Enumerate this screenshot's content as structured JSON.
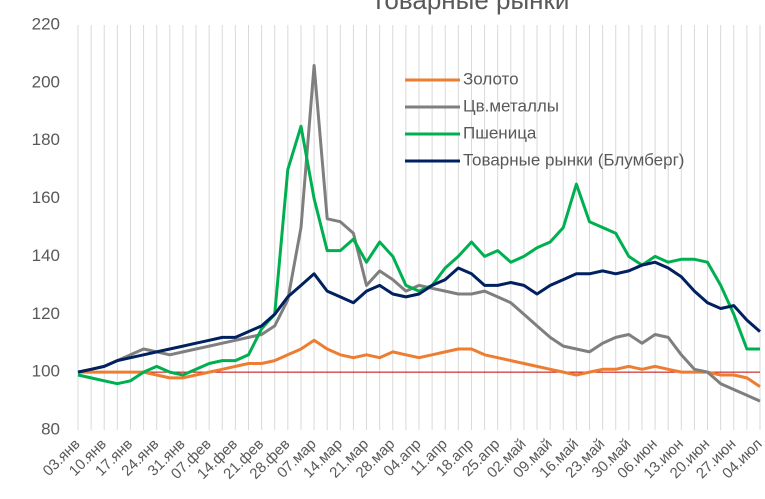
{
  "chart_data": {
    "type": "line",
    "title": "Товарные рынки",
    "categories": [
      "03.янв",
      null,
      "10.янв",
      null,
      "17.янв",
      null,
      "24.янв",
      null,
      "31.янв",
      null,
      "07.фев",
      null,
      "14.фев",
      null,
      "21.фев",
      null,
      "28.фев",
      null,
      "07.мар",
      null,
      "14.мар",
      null,
      "21.мар",
      null,
      "28.мар",
      null,
      "04.апр",
      null,
      "11.апр",
      null,
      "18.апр",
      null,
      "25.апр",
      null,
      "02.май",
      null,
      "09.май",
      null,
      "16.май",
      null,
      "23.май",
      null,
      "30.май",
      null,
      "06.июн",
      null,
      "13.июн",
      null,
      "20.июн",
      null,
      "27.июн",
      null,
      "04.июл"
    ],
    "series": [
      {
        "name": "Золото",
        "color": "#ed7d31",
        "values": [
          100,
          100,
          100,
          100,
          100,
          100,
          99,
          98,
          98,
          99,
          100,
          101,
          102,
          103,
          103,
          104,
          106,
          108,
          111,
          108,
          106,
          105,
          106,
          105,
          107,
          106,
          105,
          106,
          107,
          108,
          108,
          106,
          105,
          104,
          103,
          102,
          101,
          100,
          99,
          100,
          101,
          101,
          102,
          101,
          102,
          101,
          100,
          100,
          100,
          99,
          99,
          98,
          95
        ]
      },
      {
        "name": "Цв.металлы",
        "color": "#7f7f7f",
        "values": [
          100,
          101,
          102,
          104,
          106,
          108,
          107,
          106,
          107,
          108,
          109,
          110,
          111,
          112,
          113,
          116,
          125,
          150,
          206,
          153,
          152,
          148,
          130,
          135,
          132,
          128,
          130,
          129,
          128,
          127,
          127,
          128,
          126,
          124,
          120,
          116,
          112,
          109,
          108,
          107,
          110,
          112,
          113,
          110,
          113,
          112,
          106,
          101,
          100,
          96,
          94,
          92,
          90
        ]
      },
      {
        "name": "Пшеница",
        "color": "#00b050",
        "values": [
          99,
          98,
          97,
          96,
          97,
          100,
          102,
          100,
          99,
          101,
          103,
          104,
          104,
          106,
          115,
          120,
          170,
          185,
          160,
          142,
          142,
          146,
          138,
          145,
          140,
          130,
          128,
          130,
          136,
          140,
          145,
          140,
          142,
          138,
          140,
          143,
          145,
          150,
          165,
          152,
          150,
          148,
          140,
          137,
          140,
          138,
          139,
          139,
          138,
          130,
          120,
          108,
          108
        ]
      },
      {
        "name": "Товарные рынки (Блумберг)",
        "color": "#002060",
        "values": [
          100,
          101,
          102,
          104,
          105,
          106,
          107,
          108,
          109,
          110,
          111,
          112,
          112,
          114,
          116,
          120,
          126,
          130,
          134,
          128,
          126,
          124,
          128,
          130,
          127,
          126,
          127,
          130,
          132,
          136,
          134,
          130,
          130,
          131,
          130,
          127,
          130,
          132,
          134,
          134,
          135,
          134,
          135,
          137,
          138,
          136,
          133,
          128,
          124,
          122,
          123,
          118,
          114
        ]
      }
    ],
    "ylim": [
      80,
      220
    ],
    "yticks": [
      80,
      100,
      120,
      140,
      160,
      180,
      200,
      220
    ],
    "reference_line": {
      "value": 100,
      "color": "#c00000"
    },
    "grid": true,
    "legend": "top-right"
  }
}
